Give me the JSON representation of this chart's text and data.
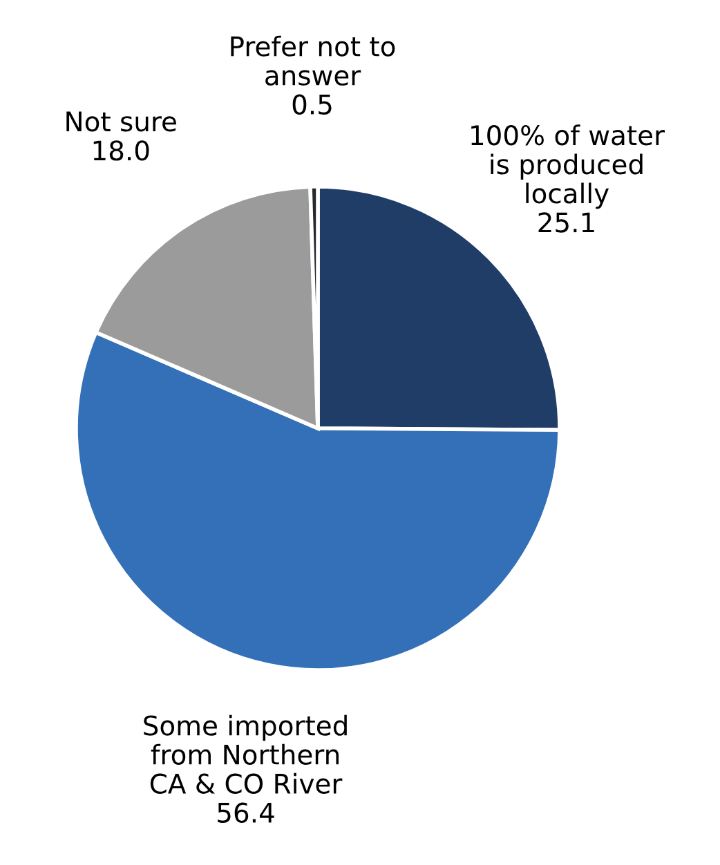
{
  "chart_data": {
    "type": "pie",
    "categories": [
      "100% of water\nis produced\nlocally",
      "Some imported\nfrom Northern\nCA & CO River",
      "Not sure",
      "Prefer not to\nanswer"
    ],
    "values": [
      25.1,
      56.4,
      18.0,
      0.5
    ],
    "value_labels": [
      "25.1",
      "56.4",
      "18.0",
      "0.5"
    ],
    "colors": [
      "#1f3d66",
      "#3470b8",
      "#9b9b9b",
      "#25292f"
    ]
  }
}
